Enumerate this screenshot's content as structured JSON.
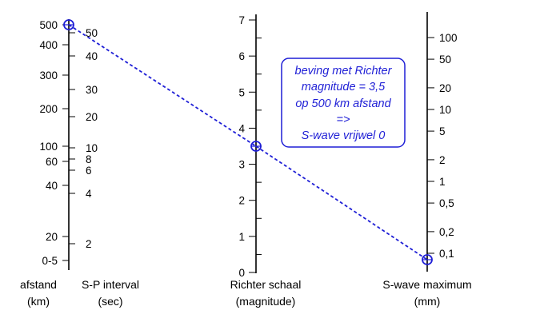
{
  "scales": {
    "distance": {
      "title": "afstand",
      "unit": "(km)",
      "ticks": [
        {
          "label": "500",
          "major": true
        },
        {
          "label": "400",
          "major": true
        },
        {
          "label": "300",
          "major": true
        },
        {
          "label": "200",
          "major": true
        },
        {
          "label": "100",
          "major": true
        },
        {
          "label": "60",
          "major": true
        },
        {
          "label": "40",
          "major": true
        },
        {
          "label": "20",
          "major": true
        },
        {
          "label": "0-5",
          "major": true
        }
      ]
    },
    "sp_interval": {
      "title": "S-P interval",
      "unit": "(sec)",
      "ticks": [
        {
          "label": "50"
        },
        {
          "label": "40"
        },
        {
          "label": "30"
        },
        {
          "label": "20"
        },
        {
          "label": "10"
        },
        {
          "label": "8"
        },
        {
          "label": "6"
        },
        {
          "label": "4"
        },
        {
          "label": "2"
        }
      ]
    },
    "richter": {
      "title": "Richter schaal",
      "unit": "(magnitude)",
      "ticks": [
        "7",
        "6",
        "5",
        "4",
        "3",
        "2",
        "1",
        "0"
      ]
    },
    "s_wave": {
      "title": "S-wave maximum",
      "unit": "(mm)",
      "ticks": [
        "100",
        "50",
        "20",
        "10",
        "5",
        "2",
        "1",
        "0,5",
        "0,2",
        "0,1"
      ]
    }
  },
  "example": {
    "distance_km": 500,
    "magnitude": 3.5,
    "note_lines": [
      "beving met Richter",
      "magnitude = 3,5",
      "op 500 km afstand",
      "=>",
      "S-wave vrijwel 0"
    ]
  },
  "colors": {
    "axis": "#000000",
    "accent": "#1f1fd6"
  }
}
